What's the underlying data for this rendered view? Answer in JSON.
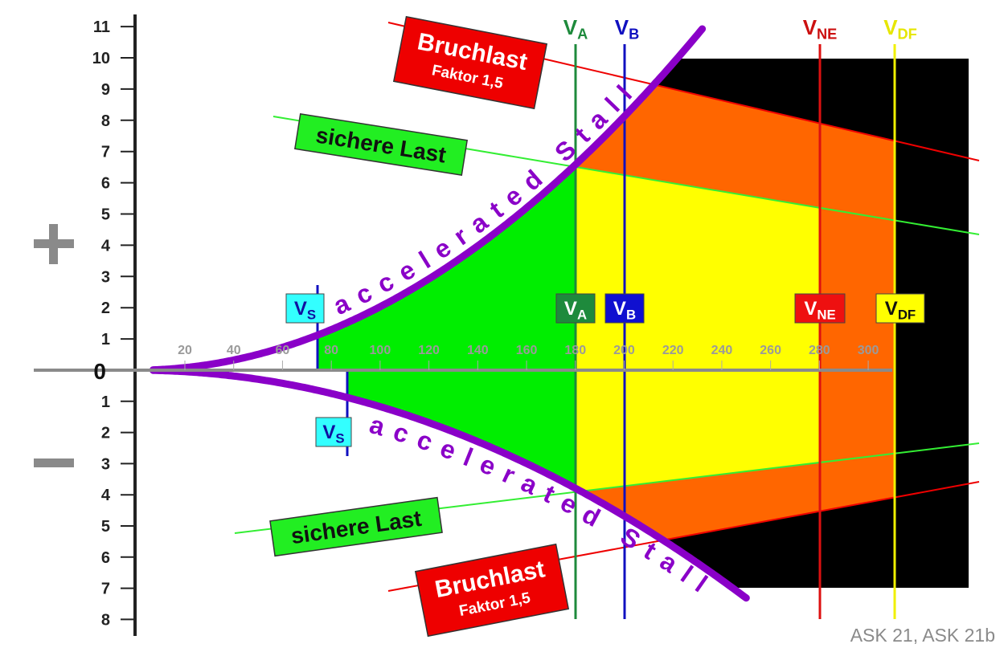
{
  "axis": {
    "zero": "0",
    "speed_ticks": [
      20,
      40,
      60,
      80,
      100,
      120,
      140,
      160,
      180,
      200,
      220,
      240,
      260,
      280,
      300
    ],
    "load_ticks_positive": [
      1,
      2,
      3,
      4,
      5,
      6,
      7,
      8,
      9,
      10,
      11
    ],
    "load_ticks_negative": [
      1,
      2,
      3,
      4,
      5,
      6,
      7,
      8
    ]
  },
  "speeds": [
    {
      "symbol": "V",
      "subscript": "S"
    },
    {
      "symbol": "V",
      "subscript": "A"
    },
    {
      "symbol": "V",
      "subscript": "B"
    },
    {
      "symbol": "V",
      "subscript": "NE"
    },
    {
      "symbol": "V",
      "subscript": "DF"
    }
  ],
  "labels": {
    "ultimate": "Bruchlast",
    "factor": "Faktor 1,5",
    "limit": "sichere Last",
    "stall": "accelerated Stall"
  },
  "aircraft": "ASK 21, ASK 21b"
}
